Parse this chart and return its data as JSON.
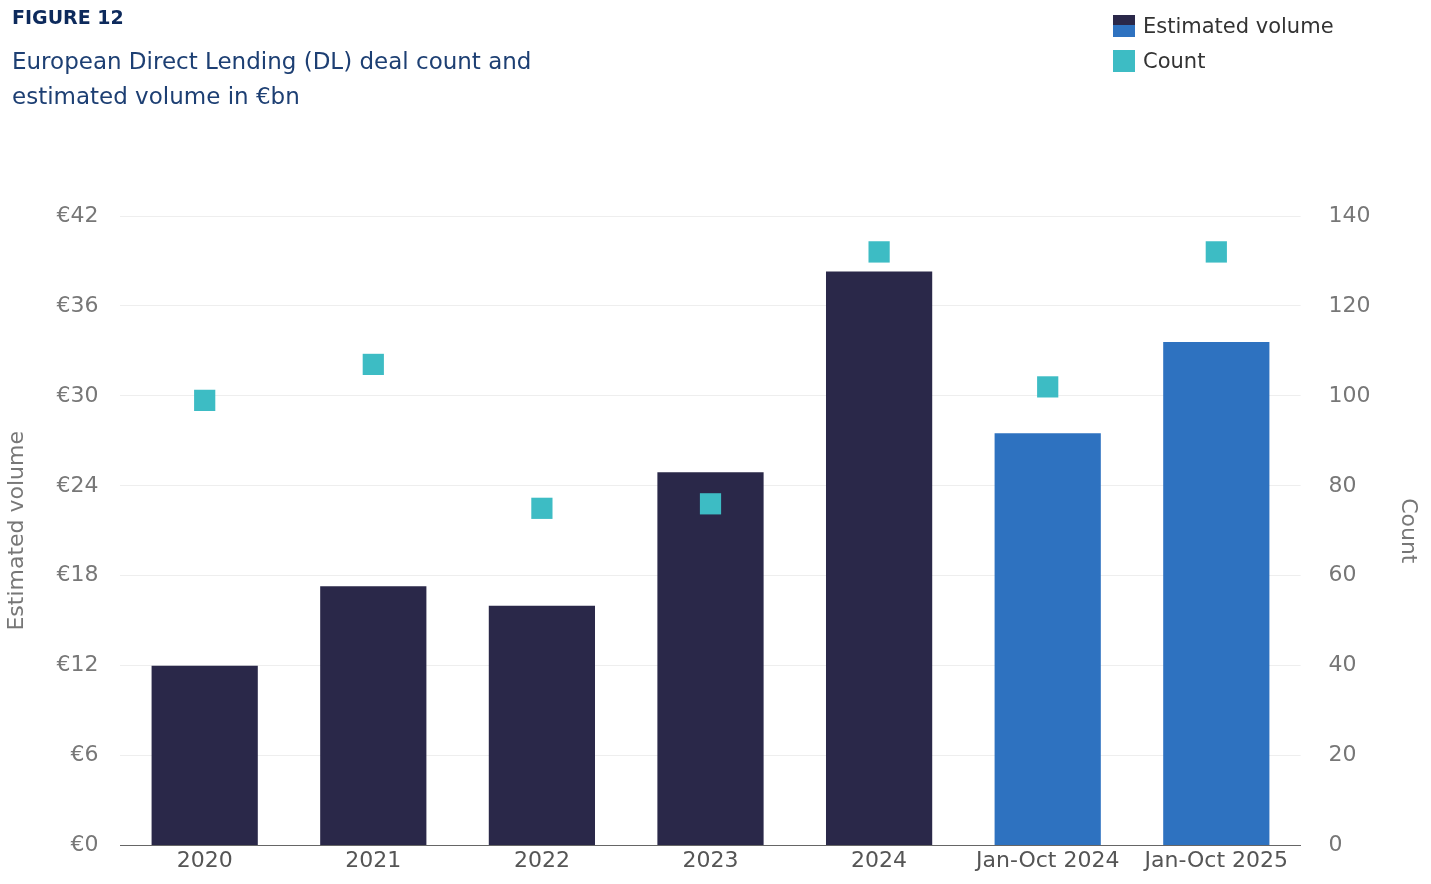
{
  "chart_data": {
    "type": "bar",
    "title": "FIGURE 12",
    "subtitle": "European Direct Lending (DL) deal count and estimated volume in €bn",
    "ylabel": "Estimated volume",
    "y2label": "Count",
    "categories": [
      "2020",
      "2021",
      "2022",
      "2023",
      "2024",
      "Jan-Oct 2024",
      "Jan-Oct 2025"
    ],
    "series": [
      {
        "name": "Estimated volume",
        "colors": [
          "#2a2849",
          "#2a2849",
          "#2a2849",
          "#2a2849",
          "#2a2849",
          "#2e72c0",
          "#2e72c0"
        ],
        "values": [
          12,
          17.3,
          16,
          24.9,
          38.3,
          27.5,
          33.6
        ]
      },
      {
        "name": "Count",
        "type": "scatter",
        "axis": "y2",
        "color": "#3dbcc4",
        "values": [
          99,
          107,
          75,
          76,
          132,
          102,
          132
        ]
      }
    ],
    "ylim": [
      0,
      42
    ],
    "yticks": [
      {
        "value": 0,
        "label": "€0"
      },
      {
        "value": 6,
        "label": "€6"
      },
      {
        "value": 12,
        "label": "€12"
      },
      {
        "value": 18,
        "label": "€18"
      },
      {
        "value": 24,
        "label": "€24"
      },
      {
        "value": 30,
        "label": "€30"
      },
      {
        "value": 36,
        "label": "€36"
      },
      {
        "value": 42,
        "label": "€42"
      }
    ],
    "y2lim": [
      0,
      140
    ],
    "y2ticks": [
      0,
      20,
      40,
      60,
      80,
      100,
      120,
      140
    ],
    "grid": "y",
    "legend": "top right",
    "marker": "square"
  }
}
